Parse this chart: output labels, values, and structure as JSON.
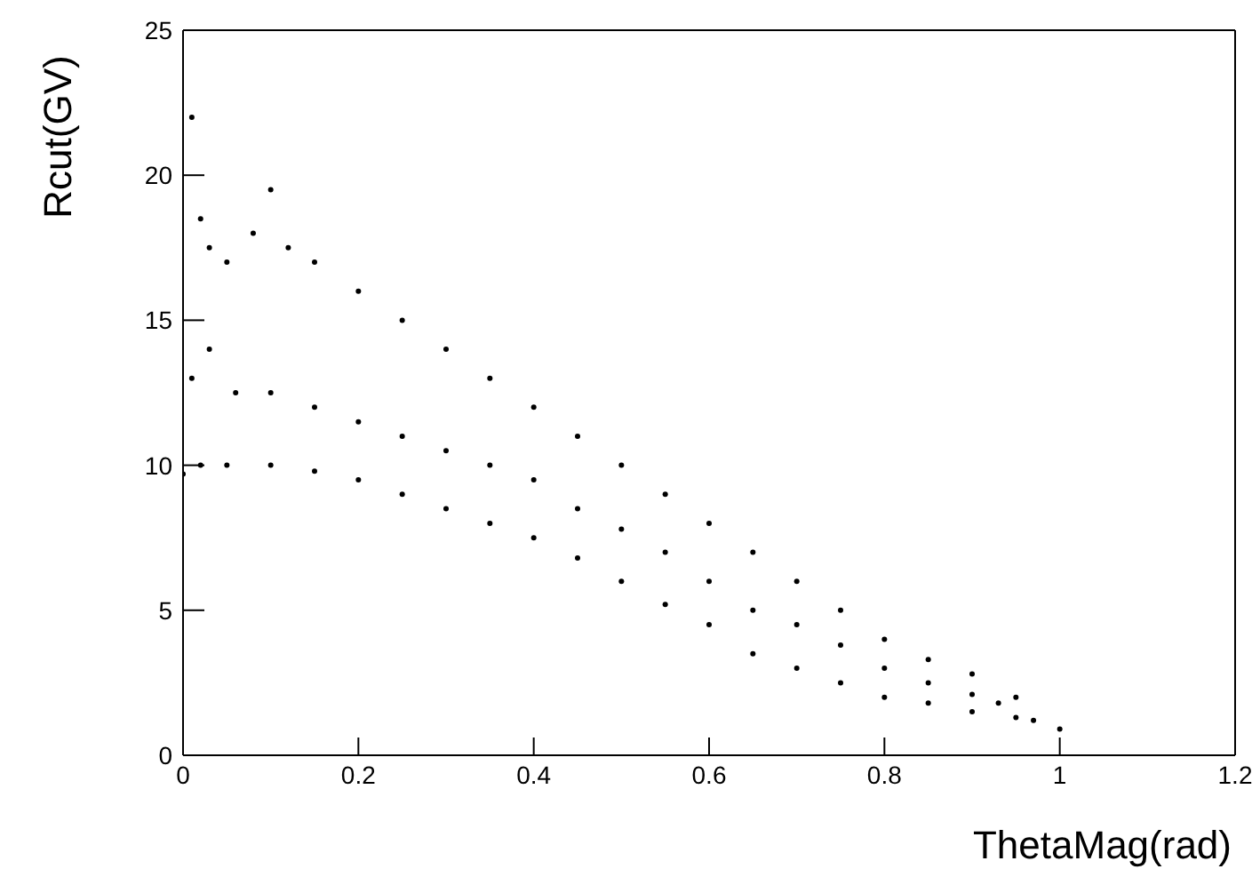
{
  "chart_data": {
    "type": "scatter",
    "xlabel": "ThetaMag(rad)",
    "ylabel": "Rcut(GV)",
    "xlim": [
      0,
      1.2
    ],
    "ylim": [
      0,
      25
    ],
    "xticks": [
      0,
      0.2,
      0.4,
      0.6,
      0.8,
      1,
      1.2
    ],
    "yticks": [
      0,
      5,
      10,
      15,
      20,
      25
    ],
    "marker": "circle",
    "series": [
      {
        "color": "#000000",
        "x": [
          0.01,
          0.02,
          0.03,
          0.05,
          0.08,
          0.1,
          0.12,
          0.15,
          0.2,
          0.25,
          0.3,
          0.35,
          0.4,
          0.45,
          0.5,
          0.55,
          0.6,
          0.65,
          0.7,
          0.75,
          0.8,
          0.85,
          0.9,
          0.95,
          1.0,
          0.0,
          0.02,
          0.05,
          0.1,
          0.15,
          0.2,
          0.25,
          0.3,
          0.35,
          0.4,
          0.45,
          0.5,
          0.55,
          0.6,
          0.65,
          0.7,
          0.75,
          0.8,
          0.85,
          0.9,
          0.95,
          0.01,
          0.03,
          0.06,
          0.1,
          0.15,
          0.2,
          0.25,
          0.3,
          0.35,
          0.4,
          0.45,
          0.5,
          0.55,
          0.6,
          0.65,
          0.7,
          0.75,
          0.8,
          0.85,
          0.9,
          0.93,
          0.97
        ],
        "values": [
          22,
          18.5,
          17.5,
          17,
          18,
          19.5,
          17.5,
          17,
          16,
          15,
          14,
          13,
          12,
          11,
          10,
          9,
          8,
          7,
          6,
          5,
          4,
          3.3,
          2.8,
          2,
          0.9,
          9.7,
          10,
          10,
          10,
          9.8,
          9.5,
          9,
          8.5,
          8,
          7.5,
          6.8,
          6,
          5.2,
          4.5,
          3.5,
          3,
          2.5,
          2,
          1.8,
          1.5,
          1.3,
          13,
          14,
          12.5,
          12.5,
          12,
          11.5,
          11,
          10.5,
          10,
          9.5,
          8.5,
          7.8,
          7,
          6,
          5,
          4.5,
          3.8,
          3,
          2.5,
          2.1,
          1.8,
          1.2
        ]
      }
    ]
  }
}
